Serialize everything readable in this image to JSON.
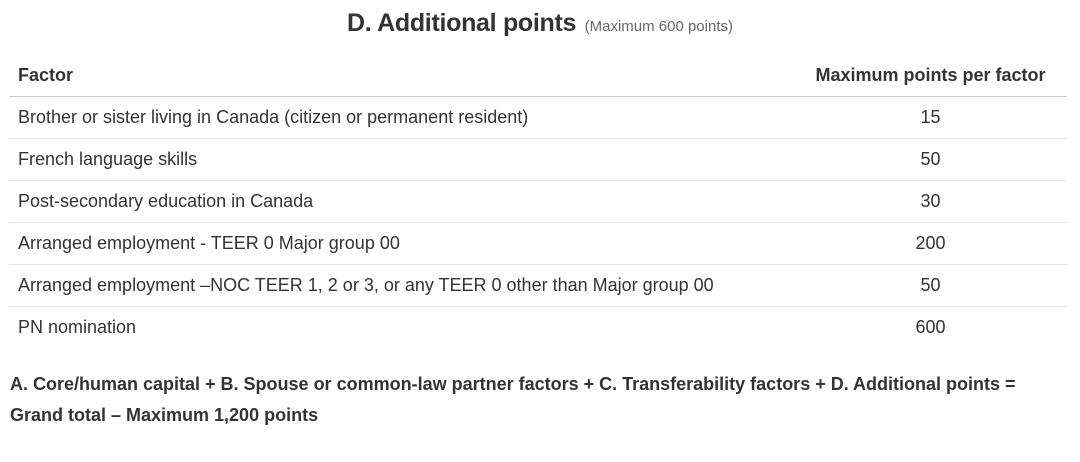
{
  "heading": {
    "title": "D. Additional points",
    "subtitle": "(Maximum 600 points)"
  },
  "table": {
    "headers": {
      "factor": "Factor",
      "max_points": "Maximum points per factor"
    },
    "rows": [
      {
        "factor": "Brother or sister living in Canada (citizen or permanent resident)",
        "points": "15"
      },
      {
        "factor": "French language skills",
        "points": "50"
      },
      {
        "factor": "Post-secondary education in Canada",
        "points": "30"
      },
      {
        "factor": "Arranged employment - TEER 0 Major group 00",
        "points": "200"
      },
      {
        "factor": "Arranged employment –NOC TEER 1, 2 or 3, or any TEER 0 other than Major group 00",
        "points": "50"
      },
      {
        "factor": "PN nomination",
        "points": "600"
      }
    ]
  },
  "footer": {
    "summary": "A. Core/human capital + B. Spouse or common-law partner factors + C. Transferability factors + D. Additional points = Grand total – Maximum 1,200 points"
  }
}
